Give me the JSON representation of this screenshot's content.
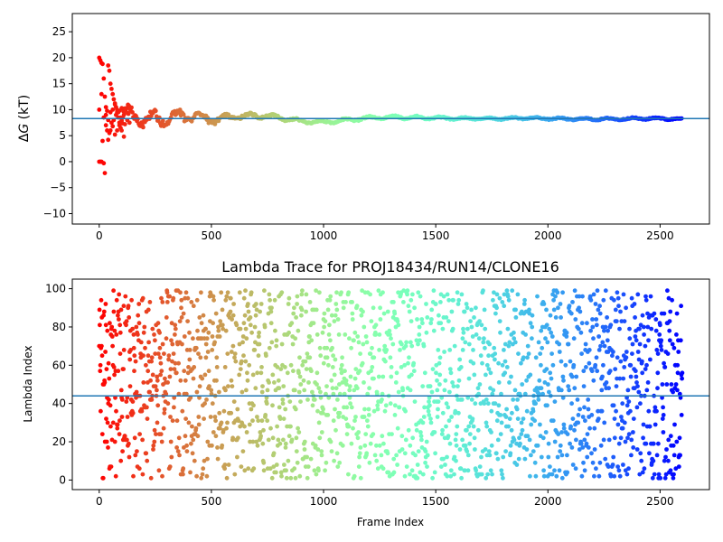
{
  "chart_data": [
    {
      "type": "scatter",
      "title": "",
      "xlabel": "",
      "ylabel": "ΔG (kT)",
      "ylabel_parts": {
        "delta": "Δ",
        "var": "G",
        "unit": " (kT)"
      },
      "xlim": [
        -120,
        2720
      ],
      "ylim": [
        -12,
        28.5
      ],
      "xticks": [
        0,
        500,
        1000,
        1500,
        2000,
        2500
      ],
      "yticks": [
        -10,
        -5,
        0,
        5,
        10,
        15,
        20,
        25
      ],
      "grid": false,
      "colormap": "rainbow",
      "hline": 8.3,
      "hline_color": "#1f77b4",
      "n_frames": 2600,
      "early_points": [
        [
          0,
          20
        ],
        [
          5,
          19.5
        ],
        [
          10,
          19
        ],
        [
          15,
          18.8
        ],
        [
          20,
          16
        ],
        [
          25,
          12.5
        ],
        [
          30,
          10.5
        ],
        [
          35,
          9.8
        ],
        [
          40,
          18.5
        ],
        [
          45,
          17.5
        ],
        [
          50,
          15
        ],
        [
          55,
          14
        ],
        [
          60,
          13
        ],
        [
          65,
          12
        ],
        [
          70,
          11.2
        ],
        [
          75,
          10.5
        ],
        [
          80,
          9.5
        ],
        [
          85,
          8.5
        ],
        [
          90,
          7.5
        ],
        [
          95,
          6.5
        ],
        [
          0,
          0
        ],
        [
          5,
          0
        ],
        [
          10,
          0
        ],
        [
          15,
          4
        ],
        [
          20,
          -0.3
        ],
        [
          25,
          -2.2
        ],
        [
          30,
          7
        ],
        [
          35,
          6
        ],
        [
          40,
          4.2
        ],
        [
          45,
          5.5
        ],
        [
          50,
          6
        ],
        [
          55,
          7.5
        ],
        [
          60,
          6.8
        ],
        [
          65,
          8
        ],
        [
          70,
          5.2
        ],
        [
          75,
          9
        ],
        [
          80,
          6
        ],
        [
          85,
          9.5
        ],
        [
          90,
          7
        ],
        [
          95,
          8.5
        ],
        [
          0,
          10
        ],
        [
          10,
          13
        ],
        [
          20,
          8.5
        ],
        [
          30,
          9
        ],
        [
          40,
          8
        ],
        [
          50,
          9.5
        ],
        [
          60,
          10
        ],
        [
          70,
          11
        ],
        [
          80,
          10
        ],
        [
          90,
          9.8
        ],
        [
          100,
          10.3
        ],
        [
          100,
          6
        ],
        [
          105,
          8.5
        ],
        [
          110,
          9
        ],
        [
          110,
          4.8
        ],
        [
          115,
          7.2
        ],
        [
          120,
          10.2
        ],
        [
          125,
          8
        ],
        [
          130,
          9.2
        ],
        [
          135,
          7.5
        ]
      ],
      "trend": [
        [
          100,
          8.5,
          2.5
        ],
        [
          140,
          8.6,
          1.8
        ],
        [
          200,
          8.4,
          1.5
        ],
        [
          260,
          8.2,
          2.0
        ],
        [
          300,
          8.5,
          1.4
        ],
        [
          400,
          8.8,
          1.2
        ],
        [
          500,
          8.1,
          0.9
        ],
        [
          600,
          8.6,
          0.5
        ],
        [
          700,
          8.9,
          0.5
        ],
        [
          800,
          8.5,
          0.4
        ],
        [
          900,
          7.8,
          0.3
        ],
        [
          1000,
          7.6,
          0.3
        ],
        [
          1100,
          8.0,
          0.3
        ],
        [
          1200,
          8.4,
          0.3
        ],
        [
          1300,
          8.6,
          0.3
        ],
        [
          1400,
          8.5,
          0.3
        ],
        [
          1500,
          8.4,
          0.3
        ],
        [
          1600,
          8.3,
          0.2
        ],
        [
          1700,
          8.3,
          0.2
        ],
        [
          1800,
          8.3,
          0.2
        ],
        [
          1900,
          8.4,
          0.2
        ],
        [
          2000,
          8.3,
          0.2
        ],
        [
          2100,
          8.2,
          0.2
        ],
        [
          2200,
          8.2,
          0.2
        ],
        [
          2300,
          8.2,
          0.2
        ],
        [
          2400,
          8.3,
          0.2
        ],
        [
          2500,
          8.3,
          0.2
        ],
        [
          2600,
          8.2,
          0.2
        ]
      ]
    },
    {
      "type": "scatter",
      "title": "Lambda Trace for PROJ18434/RUN14/CLONE16",
      "xlabel": "Frame Index",
      "ylabel": "Lambda Index",
      "xlim": [
        -120,
        2720
      ],
      "ylim": [
        -5,
        105
      ],
      "xticks": [
        0,
        500,
        1000,
        1500,
        2000,
        2500
      ],
      "yticks": [
        0,
        20,
        40,
        60,
        80,
        100
      ],
      "grid": false,
      "colormap": "rainbow",
      "hline": 44,
      "hline_color": "#1f77b4",
      "n_frames": 2600,
      "lambda_range": [
        1,
        99
      ]
    }
  ]
}
